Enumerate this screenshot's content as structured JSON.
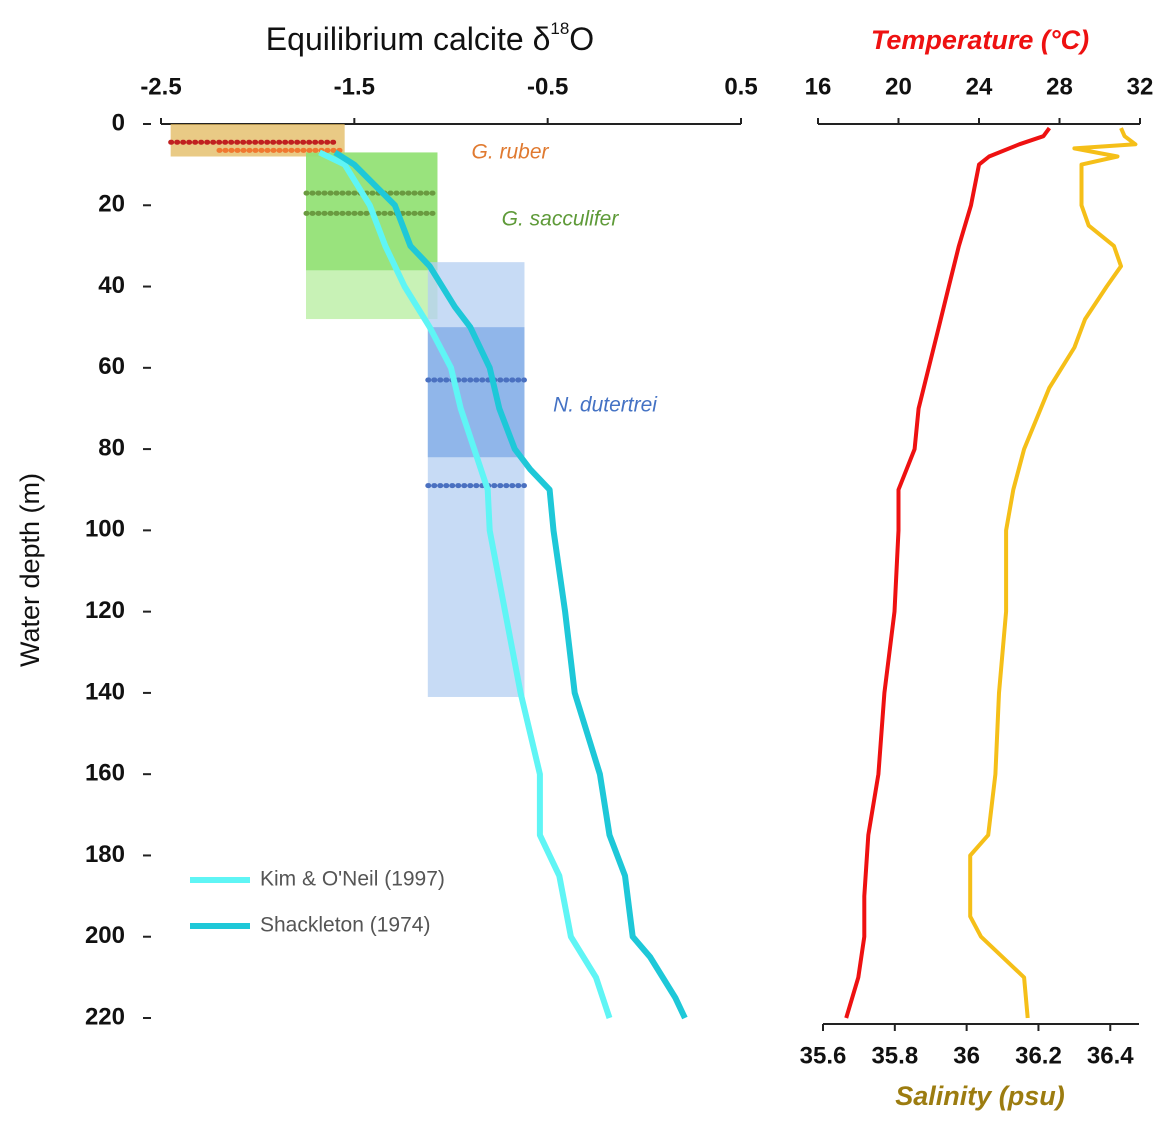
{
  "chart_data": [
    {
      "type": "line",
      "xlabel": [
        "Equilibrium calcite δ",
        "18",
        "O"
      ],
      "ylabel": "Water depth (m)",
      "xlim": [
        -2.5,
        0.5
      ],
      "xticks": [
        -2.5,
        -1.5,
        -0.5,
        0.5
      ],
      "ylim": [
        0,
        220
      ],
      "yticks": [
        0,
        20,
        40,
        60,
        80,
        100,
        120,
        140,
        160,
        180,
        200,
        220
      ],
      "series": [
        {
          "name": "Kim & O'Neil (1997)",
          "color": "#5ff5f5",
          "depth": [
            7,
            10,
            20,
            30,
            40,
            50,
            60,
            70,
            80,
            90,
            100,
            120,
            140,
            160,
            175,
            185,
            200,
            210,
            220
          ],
          "values": [
            -1.68,
            -1.55,
            -1.42,
            -1.34,
            -1.24,
            -1.11,
            -1.0,
            -0.95,
            -0.88,
            -0.81,
            -0.8,
            -0.72,
            -0.64,
            -0.54,
            -0.54,
            -0.44,
            -0.38,
            -0.25,
            -0.18
          ]
        },
        {
          "name": "Shackleton (1974)",
          "color": "#1ec8d8",
          "depth": [
            7,
            10,
            20,
            30,
            35,
            45,
            50,
            60,
            70,
            80,
            85,
            90,
            100,
            120,
            140,
            160,
            175,
            185,
            200,
            205,
            215,
            220
          ],
          "values": [
            -1.6,
            -1.5,
            -1.29,
            -1.21,
            -1.11,
            -0.98,
            -0.9,
            -0.8,
            -0.75,
            -0.67,
            -0.59,
            -0.49,
            -0.47,
            -0.41,
            -0.36,
            -0.23,
            -0.18,
            -0.1,
            -0.06,
            0.03,
            0.16,
            0.21
          ]
        }
      ],
      "ranges": [
        {
          "label": "G. ruber",
          "color": "#e07a30",
          "boxes": [
            {
              "values": [
                -2.45,
                -1.55
              ],
              "depth": [
                0,
                8
              ],
              "color": "#e2b85c"
            }
          ],
          "rows": [
            {
              "depth": 4.5,
              "values": [
                -2.45,
                -1.6
              ],
              "color": "#c02020"
            },
            {
              "depth": 6.5,
              "values": [
                -2.2,
                -1.55
              ],
              "color": "#f07830"
            }
          ]
        },
        {
          "label": "G. sacculifer",
          "color": "#5e9a38",
          "boxes": [
            {
              "values": [
                -1.75,
                -1.07
              ],
              "depth": [
                7,
                48
              ],
              "color": "#b6ee9e"
            },
            {
              "values": [
                -1.75,
                -1.07
              ],
              "depth": [
                7,
                36
              ],
              "color": "#8ade6a"
            }
          ],
          "rows": [
            {
              "depth": 17,
              "values": [
                -1.75,
                -1.07
              ],
              "color": "#6a9a40"
            },
            {
              "depth": 22,
              "values": [
                -1.75,
                -1.07
              ],
              "color": "#6a9a40"
            }
          ]
        },
        {
          "label": "N. dutertrei",
          "color": "#4472c4",
          "boxes": [
            {
              "values": [
                -1.12,
                -0.62
              ],
              "depth": [
                34,
                141
              ],
              "color": "#b4cff2"
            },
            {
              "values": [
                -1.12,
                -0.62
              ],
              "depth": [
                50,
                82
              ],
              "color": "#7eaae6"
            }
          ],
          "rows": [
            {
              "depth": 63,
              "values": [
                -1.12,
                -0.62
              ],
              "color": "#4a70c0"
            },
            {
              "depth": 89,
              "values": [
                -1.12,
                -0.62
              ],
              "color": "#4a70c0"
            }
          ]
        }
      ]
    },
    {
      "type": "line",
      "xlabel": "Temperature (°C)",
      "x2label": "Salinity (psu)",
      "xlim": [
        16,
        32
      ],
      "xticks": [
        16,
        20,
        24,
        28,
        32
      ],
      "x2lim": [
        35.6,
        36.48
      ],
      "x2ticks": [
        35.6,
        35.8,
        36,
        36.2,
        36.4
      ],
      "ylim": [
        0,
        220
      ],
      "series": [
        {
          "name": "Temperature",
          "color": "#ee1111",
          "depth": [
            1,
            3,
            5,
            8,
            10,
            20,
            30,
            40,
            50,
            60,
            70,
            80,
            90,
            100,
            120,
            140,
            160,
            175,
            190,
            200,
            210,
            220
          ],
          "values": [
            27.5,
            27.2,
            26,
            24.5,
            24,
            23.6,
            23,
            22.5,
            22,
            21.5,
            21,
            20.8,
            20,
            20,
            19.8,
            19.3,
            19,
            18.5,
            18.3,
            18.3,
            18,
            17.4
          ]
        },
        {
          "name": "Salinity",
          "color": "#f5bf18",
          "axis": "x2",
          "depth": [
            1,
            3,
            5,
            6,
            8,
            10,
            20,
            25,
            30,
            35,
            40,
            48,
            55,
            65,
            80,
            90,
            100,
            120,
            140,
            160,
            175,
            180,
            195,
            200,
            210,
            220
          ],
          "values": [
            36.43,
            36.44,
            36.47,
            36.3,
            36.42,
            36.32,
            36.32,
            36.34,
            36.41,
            36.43,
            36.39,
            36.33,
            36.3,
            36.23,
            36.16,
            36.13,
            36.11,
            36.11,
            36.09,
            36.08,
            36.06,
            36.01,
            36.01,
            36.04,
            36.16,
            36.17
          ]
        }
      ]
    }
  ]
}
